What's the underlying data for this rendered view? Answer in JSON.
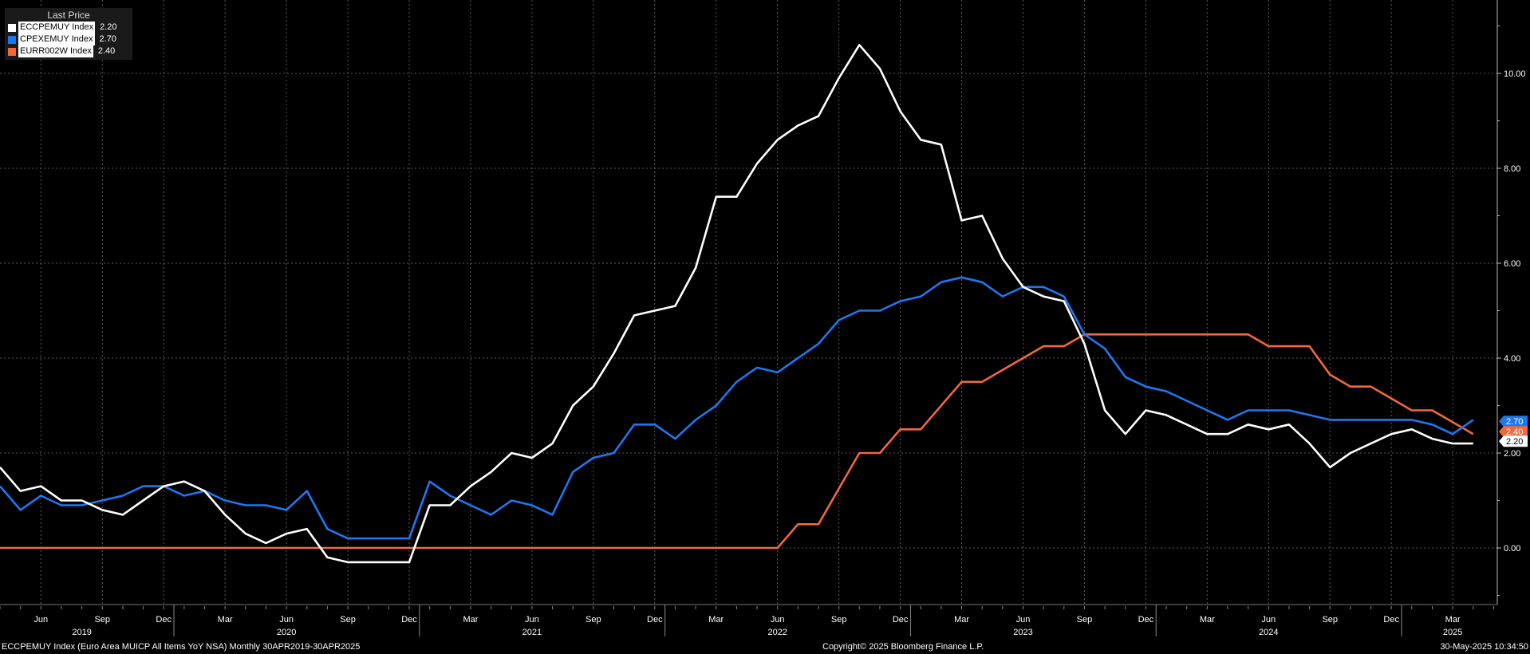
{
  "legend": {
    "title": "Last Price",
    "entries": [
      {
        "name": "ECCPEMUY Index",
        "value": "2.20",
        "color": "#ffffff"
      },
      {
        "name": "CPEXEMUY Index",
        "value": "2.70",
        "color": "#1f77f0"
      },
      {
        "name": "EURR002W Index",
        "value": "2.40",
        "color": "#f2683c"
      }
    ]
  },
  "footer": {
    "left": "ECCPEMUY Index (Euro Area MUICP All Items YoY NSA)  Monthly 30APR2019-30APR2025",
    "center": "Copyright© 2025 Bloomberg Finance L.P.",
    "right": "30-May-2025 10:34:50"
  },
  "chart_data": {
    "type": "line",
    "ylim": [
      -1.2,
      11.4
    ],
    "yticks": [
      0,
      2,
      4,
      6,
      8,
      10
    ],
    "ytick_labels": [
      "0.00",
      "2.00",
      "4.00",
      "6.00",
      "8.00",
      "10.00"
    ],
    "x_month_ticks": [
      {
        "label": "Jun",
        "month": 2
      },
      {
        "label": "Sep",
        "month": 5
      },
      {
        "label": "Dec",
        "month": 8
      },
      {
        "label": "Mar",
        "month": 11
      },
      {
        "label": "Jun",
        "month": 14
      },
      {
        "label": "Sep",
        "month": 17
      },
      {
        "label": "Dec",
        "month": 20
      },
      {
        "label": "Mar",
        "month": 23
      },
      {
        "label": "Jun",
        "month": 26
      },
      {
        "label": "Sep",
        "month": 29
      },
      {
        "label": "Dec",
        "month": 32
      },
      {
        "label": "Mar",
        "month": 35
      },
      {
        "label": "Jun",
        "month": 38
      },
      {
        "label": "Sep",
        "month": 41
      },
      {
        "label": "Dec",
        "month": 44
      },
      {
        "label": "Mar",
        "month": 47
      },
      {
        "label": "Jun",
        "month": 50
      },
      {
        "label": "Sep",
        "month": 53
      },
      {
        "label": "Dec",
        "month": 56
      },
      {
        "label": "Mar",
        "month": 59
      },
      {
        "label": "Jun",
        "month": 62
      },
      {
        "label": "Sep",
        "month": 65
      },
      {
        "label": "Dec",
        "month": 68
      },
      {
        "label": "Mar",
        "month": 71
      }
    ],
    "x_year_ticks": [
      {
        "label": "2019",
        "month": 4,
        "sep": 8.5
      },
      {
        "label": "2020",
        "month": 14,
        "sep": 20.5
      },
      {
        "label": "2021",
        "month": 26,
        "sep": 32.5
      },
      {
        "label": "2022",
        "month": 38,
        "sep": 44.5
      },
      {
        "label": "2023",
        "month": 50,
        "sep": 56.5
      },
      {
        "label": "2024",
        "month": 62,
        "sep": 68.5
      },
      {
        "label": "2025",
        "month": 71,
        "sep": null
      }
    ],
    "series": [
      {
        "name": "ECCPEMUY Index",
        "color": "#ffffff",
        "last": "2.20",
        "values": [
          1.7,
          1.2,
          1.3,
          1.0,
          1.0,
          0.8,
          0.7,
          1.0,
          1.3,
          1.4,
          1.2,
          0.7,
          0.3,
          0.1,
          0.3,
          0.4,
          -0.2,
          -0.3,
          -0.3,
          -0.3,
          -0.3,
          0.9,
          0.9,
          1.3,
          1.6,
          2.0,
          1.9,
          2.2,
          3.0,
          3.4,
          4.1,
          4.9,
          5.0,
          5.1,
          5.9,
          7.4,
          7.4,
          8.1,
          8.6,
          8.9,
          9.1,
          9.9,
          10.6,
          10.1,
          9.2,
          8.6,
          8.5,
          6.9,
          7.0,
          6.1,
          5.5,
          5.3,
          5.2,
          4.3,
          2.9,
          2.4,
          2.9,
          2.8,
          2.6,
          2.4,
          2.4,
          2.6,
          2.5,
          2.6,
          2.2,
          1.7,
          2.0,
          2.2,
          2.4,
          2.5,
          2.3,
          2.2,
          2.2
        ]
      },
      {
        "name": "CPEXEMUY Index",
        "color": "#1f77f0",
        "last": "2.70",
        "values": [
          1.3,
          0.8,
          1.1,
          0.9,
          0.9,
          1.0,
          1.1,
          1.3,
          1.3,
          1.1,
          1.2,
          1.0,
          0.9,
          0.9,
          0.8,
          1.2,
          0.4,
          0.2,
          0.2,
          0.2,
          0.2,
          1.4,
          1.1,
          0.9,
          0.7,
          1.0,
          0.9,
          0.7,
          1.6,
          1.9,
          2.0,
          2.6,
          2.6,
          2.3,
          2.7,
          3.0,
          3.5,
          3.8,
          3.7,
          4.0,
          4.3,
          4.8,
          5.0,
          5.0,
          5.2,
          5.3,
          5.6,
          5.7,
          5.6,
          5.3,
          5.5,
          5.5,
          5.3,
          4.5,
          4.2,
          3.6,
          3.4,
          3.3,
          3.1,
          2.9,
          2.7,
          2.9,
          2.9,
          2.9,
          2.8,
          2.7,
          2.7,
          2.7,
          2.7,
          2.7,
          2.6,
          2.4,
          2.7
        ]
      },
      {
        "name": "EURR002W Index",
        "color": "#f2683c",
        "last": "2.40",
        "values": [
          0,
          0,
          0,
          0,
          0,
          0,
          0,
          0,
          0,
          0,
          0,
          0,
          0,
          0,
          0,
          0,
          0,
          0,
          0,
          0,
          0,
          0,
          0,
          0,
          0,
          0,
          0,
          0,
          0,
          0,
          0,
          0,
          0,
          0,
          0,
          0,
          0,
          0,
          0,
          0.5,
          0.5,
          1.25,
          2.0,
          2.0,
          2.5,
          2.5,
          3.0,
          3.5,
          3.5,
          3.75,
          4.0,
          4.25,
          4.25,
          4.5,
          4.5,
          4.5,
          4.5,
          4.5,
          4.5,
          4.5,
          4.5,
          4.5,
          4.25,
          4.25,
          4.25,
          3.65,
          3.4,
          3.4,
          3.15,
          2.9,
          2.9,
          2.65,
          2.4
        ]
      }
    ]
  }
}
